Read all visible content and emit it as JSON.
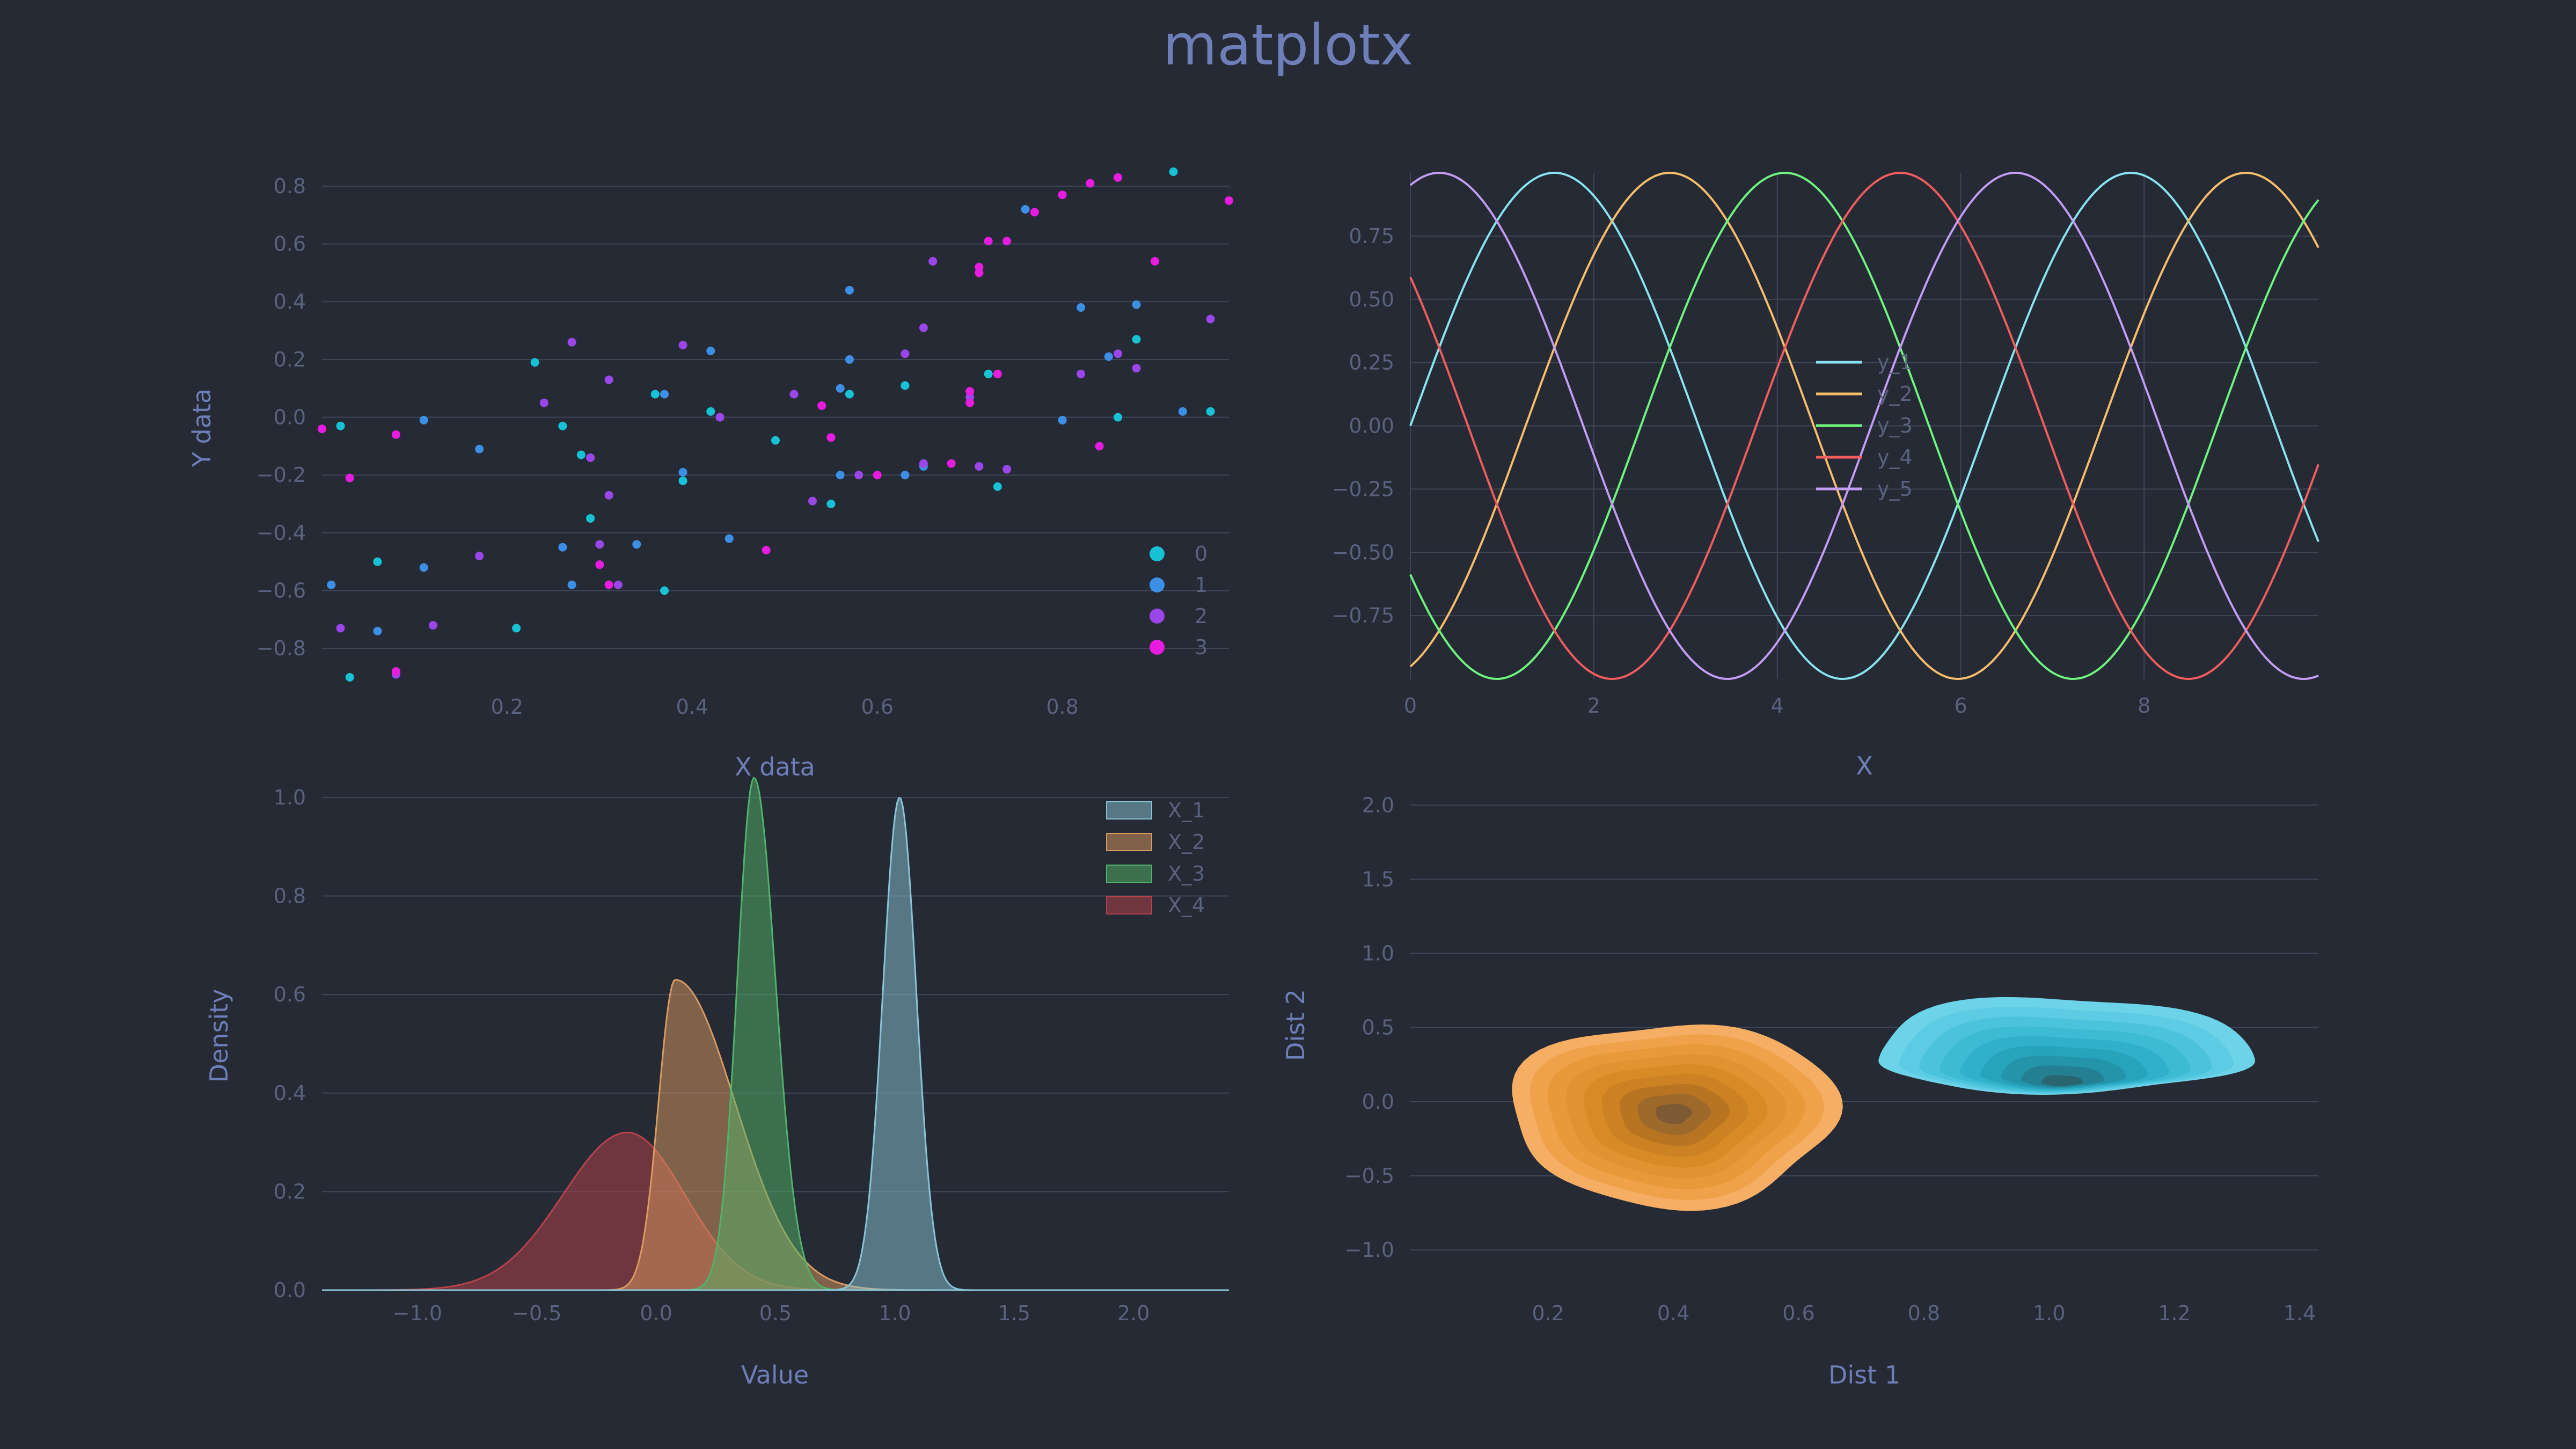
{
  "title": "matplotx",
  "chart_data": [
    {
      "type": "scatter",
      "xlabel": "X data",
      "ylabel": "Y data",
      "xlim": [
        0.0,
        0.98
      ],
      "ylim": [
        -0.9,
        0.85
      ],
      "xticks": [
        0.2,
        0.4,
        0.6,
        0.8
      ],
      "yticks": [
        -0.8,
        -0.6,
        -0.4,
        -0.2,
        0.0,
        0.2,
        0.4,
        0.6,
        0.8
      ],
      "grid": "horizontal",
      "legend_position": "bottom-right",
      "series": [
        {
          "name": "0",
          "color": "#18c2d6",
          "points": [
            [
              0.02,
              -0.03
            ],
            [
              0.06,
              -0.5
            ],
            [
              0.23,
              0.19
            ],
            [
              0.26,
              -0.03
            ],
            [
              0.28,
              -0.13
            ],
            [
              0.29,
              -0.35
            ],
            [
              0.36,
              0.08
            ],
            [
              0.39,
              -0.22
            ],
            [
              0.42,
              0.02
            ],
            [
              0.49,
              -0.08
            ],
            [
              0.57,
              0.08
            ],
            [
              0.63,
              0.11
            ],
            [
              0.72,
              0.15
            ],
            [
              0.73,
              -0.24
            ],
            [
              0.86,
              0.0
            ],
            [
              0.88,
              0.27
            ],
            [
              0.92,
              0.85
            ],
            [
              0.96,
              0.02
            ],
            [
              0.03,
              -0.9
            ],
            [
              0.21,
              -0.73
            ],
            [
              0.37,
              -0.6
            ],
            [
              0.55,
              -0.3
            ]
          ]
        },
        {
          "name": "1",
          "color": "#3d8fe6",
          "points": [
            [
              0.01,
              -0.58
            ],
            [
              0.06,
              -0.74
            ],
            [
              0.11,
              -0.52
            ],
            [
              0.11,
              -0.01
            ],
            [
              0.17,
              -0.11
            ],
            [
              0.26,
              -0.45
            ],
            [
              0.27,
              -0.58
            ],
            [
              0.34,
              -0.44
            ],
            [
              0.37,
              0.08
            ],
            [
              0.39,
              -0.19
            ],
            [
              0.42,
              0.23
            ],
            [
              0.44,
              -0.42
            ],
            [
              0.56,
              0.1
            ],
            [
              0.57,
              0.44
            ],
            [
              0.57,
              0.2
            ],
            [
              0.63,
              -0.2
            ],
            [
              0.65,
              -0.17
            ],
            [
              0.76,
              0.72
            ],
            [
              0.8,
              -0.01
            ],
            [
              0.82,
              0.38
            ],
            [
              0.85,
              0.21
            ],
            [
              0.88,
              0.39
            ],
            [
              0.93,
              0.02
            ],
            [
              0.08,
              -0.88
            ],
            [
              0.56,
              -0.2
            ]
          ]
        },
        {
          "name": "2",
          "color": "#9a46e8",
          "points": [
            [
              0.02,
              -0.73
            ],
            [
              0.08,
              -0.89
            ],
            [
              0.12,
              -0.72
            ],
            [
              0.17,
              -0.48
            ],
            [
              0.24,
              0.05
            ],
            [
              0.27,
              0.26
            ],
            [
              0.29,
              -0.14
            ],
            [
              0.31,
              -0.27
            ],
            [
              0.31,
              0.13
            ],
            [
              0.32,
              -0.58
            ],
            [
              0.39,
              0.25
            ],
            [
              0.43,
              0.0
            ],
            [
              0.51,
              0.08
            ],
            [
              0.53,
              -0.29
            ],
            [
              0.58,
              -0.2
            ],
            [
              0.63,
              0.22
            ],
            [
              0.65,
              0.31
            ],
            [
              0.66,
              0.54
            ],
            [
              0.7,
              0.07
            ],
            [
              0.71,
              -0.17
            ],
            [
              0.74,
              -0.18
            ],
            [
              0.82,
              0.15
            ],
            [
              0.86,
              0.22
            ],
            [
              0.88,
              0.17
            ],
            [
              0.96,
              0.34
            ],
            [
              0.3,
              -0.44
            ],
            [
              0.65,
              -0.16
            ]
          ]
        },
        {
          "name": "3",
          "color": "#e81ce0",
          "points": [
            [
              0.0,
              -0.04
            ],
            [
              0.03,
              -0.21
            ],
            [
              0.08,
              -0.06
            ],
            [
              0.08,
              -0.88
            ],
            [
              0.31,
              -0.58
            ],
            [
              0.3,
              -0.51
            ],
            [
              0.48,
              -0.46
            ],
            [
              0.54,
              0.04
            ],
            [
              0.55,
              -0.07
            ],
            [
              0.68,
              -0.16
            ],
            [
              0.7,
              0.05
            ],
            [
              0.7,
              0.09
            ],
            [
              0.73,
              0.15
            ],
            [
              0.71,
              0.5
            ],
            [
              0.71,
              0.52
            ],
            [
              0.72,
              0.61
            ],
            [
              0.74,
              0.61
            ],
            [
              0.77,
              0.71
            ],
            [
              0.8,
              0.77
            ],
            [
              0.83,
              0.81
            ],
            [
              0.84,
              -0.1
            ],
            [
              0.86,
              0.83
            ],
            [
              0.9,
              0.54
            ],
            [
              0.98,
              0.75
            ],
            [
              0.6,
              -0.2
            ]
          ]
        }
      ]
    },
    {
      "type": "line",
      "xlabel": "X",
      "ylabel": "",
      "xlim": [
        0,
        9.9
      ],
      "ylim": [
        -1.0,
        1.0
      ],
      "xticks": [
        0,
        2,
        4,
        6,
        8
      ],
      "xtick_labels": [
        "0",
        "2",
        "4",
        "6",
        "8"
      ],
      "yticks": [
        -0.75,
        -0.5,
        -0.25,
        0.0,
        0.25,
        0.5,
        0.75
      ],
      "ytick_labels": [
        "−0.75",
        "−0.50",
        "−0.25",
        "0.00",
        "0.25",
        "0.50",
        "0.75"
      ],
      "grid": "both",
      "legend_position": "center",
      "series": [
        {
          "name": "y_1",
          "color": "#88e3f0",
          "function": "sin(x)"
        },
        {
          "name": "y_2",
          "color": "#f7bd6a",
          "function": "sin(x - 1.2566)"
        },
        {
          "name": "y_3",
          "color": "#6ff47e",
          "function": "sin(x - 2.5133)"
        },
        {
          "name": "y_4",
          "color": "#f35d5d",
          "function": "sin(x - 3.7699)"
        },
        {
          "name": "y_5",
          "color": "#c39cf5",
          "function": "sin(x - 5.0265)"
        }
      ]
    },
    {
      "type": "area",
      "xlabel": "Value",
      "ylabel": "Density",
      "xlim": [
        -1.4,
        2.4
      ],
      "ylim": [
        0.0,
        1.05
      ],
      "xticks": [
        -1.0,
        -0.5,
        0.0,
        0.5,
        1.0,
        1.5,
        2.0
      ],
      "xtick_labels": [
        "−1.0",
        "−0.5",
        "0.0",
        "0.5",
        "1.0",
        "1.5",
        "2.0"
      ],
      "yticks": [
        0.0,
        0.2,
        0.4,
        0.6,
        0.8,
        1.0
      ],
      "grid": "horizontal",
      "legend_position": "top-right",
      "series": [
        {
          "name": "X_1",
          "color": "#88c4d6",
          "curve": "gaussian",
          "mean": 1.02,
          "sd": 0.07,
          "peak": 1.0
        },
        {
          "name": "X_2",
          "color": "#d99a62",
          "curve": "skewed",
          "mode": 0.08,
          "sd_left": 0.07,
          "sd_right": 0.25,
          "peak": 0.63
        },
        {
          "name": "X_3",
          "color": "#4fb368",
          "curve": "skewed",
          "mode": 0.41,
          "sd_left": 0.07,
          "sd_right": 0.09,
          "peak": 1.04
        },
        {
          "name": "X_4",
          "color": "#b8424c",
          "curve": "skewed",
          "mode": -0.12,
          "sd_left": 0.27,
          "sd_right": 0.24,
          "peak": 0.32
        }
      ]
    },
    {
      "type": "contour",
      "xlabel": "Dist 1",
      "ylabel": "Dist 2",
      "xlim": [
        -0.02,
        1.43
      ],
      "ylim": [
        -1.3,
        2.2
      ],
      "xticks": [
        0.2,
        0.4,
        0.6,
        0.8,
        1.0,
        1.2,
        1.4
      ],
      "yticks": [
        -1.0,
        -0.5,
        0.0,
        0.5,
        1.0,
        1.5,
        2.0
      ],
      "ytick_labels": [
        "−1.0",
        "−0.5",
        "0.0",
        "0.5",
        "1.0",
        "1.5",
        "2.0"
      ],
      "grid": "horizontal",
      "series": [
        {
          "center": [
            0.4,
            -0.08
          ],
          "radius": [
            0.26,
            0.62
          ],
          "levels": 9,
          "colors": [
            "#f6ae64",
            "#efa24a",
            "#e89a3a",
            "#e29230",
            "#d78a26",
            "#cc8222",
            "#b97422",
            "#9e6a2c",
            "#7e5a34"
          ]
        },
        {
          "center": [
            1.02,
            0.14
          ],
          "radius": [
            0.3,
            0.42
          ],
          "offset": [
            0.0,
            0.18
          ],
          "levels": 9,
          "colors": [
            "#6dd3e9",
            "#5ccbe3",
            "#4cc3dc",
            "#3dbad4",
            "#30b0ca",
            "#27a3bc",
            "#2394aa",
            "#247f92",
            "#29656f"
          ]
        }
      ]
    }
  ]
}
